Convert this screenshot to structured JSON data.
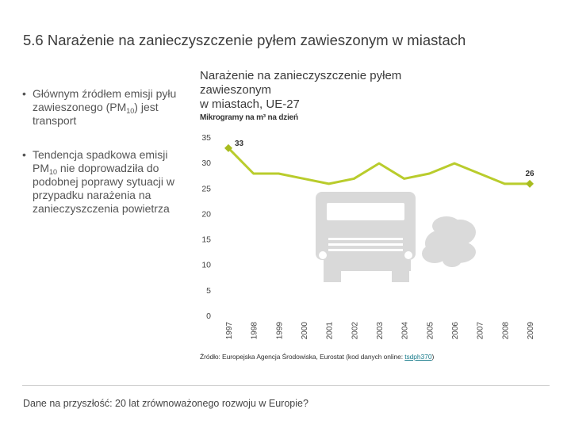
{
  "slide": {
    "number": "5.6",
    "title": "Narażenie na zanieczyszczenie pyłem zawieszonym w miastach"
  },
  "bullets": [
    {
      "before": "Głównym źródłem emisji pyłu zawieszonego (PM",
      "sub": "10",
      "after": ") jest transport"
    },
    {
      "before": "Tendencja spadkowa emisji PM",
      "sub": "10",
      "after": " nie doprowadziła do podobnej poprawy sytuacji w przypadku narażenia na zanieczyszczenia powietrza"
    }
  ],
  "source": {
    "prefix": "Źródło: Europejska Agencja Środowiska, Eurostat (kod danych online: ",
    "link": "tsdph370",
    "suffix": ")"
  },
  "footer": "Dane na przyszłość: 20 lat zrównoważonego rozwoju w Europie?",
  "colors": {
    "line": "#b9cc2c",
    "marker": "#a8bc1f",
    "truck": "#d9d9d9",
    "smoke": "#dadada"
  },
  "chart_data": {
    "type": "line",
    "title": "Narażenie na zanieczyszczenie pyłem zawieszonym w miastach, UE-27",
    "title_lines": [
      "Narażenie na zanieczyszczenie pyłem",
      "zawieszonym",
      "w miastach, UE-27"
    ],
    "ylabel": "Mikrogramy na m³ na dzień",
    "xlabel": "",
    "x": [
      "1997",
      "1998",
      "1999",
      "2000",
      "2001",
      "2002",
      "2003",
      "2004",
      "2005",
      "2006",
      "2007",
      "2008",
      "2009"
    ],
    "values": [
      33,
      28,
      28,
      27,
      26,
      27,
      30,
      27,
      28,
      30,
      28,
      26,
      26
    ],
    "yticks": [
      0,
      5,
      10,
      15,
      20,
      25,
      30,
      35
    ],
    "ylim": [
      0,
      35
    ],
    "grid": false,
    "annotations": [
      {
        "x": "1997",
        "label": "33"
      },
      {
        "x": "2009",
        "label": "26"
      }
    ]
  }
}
